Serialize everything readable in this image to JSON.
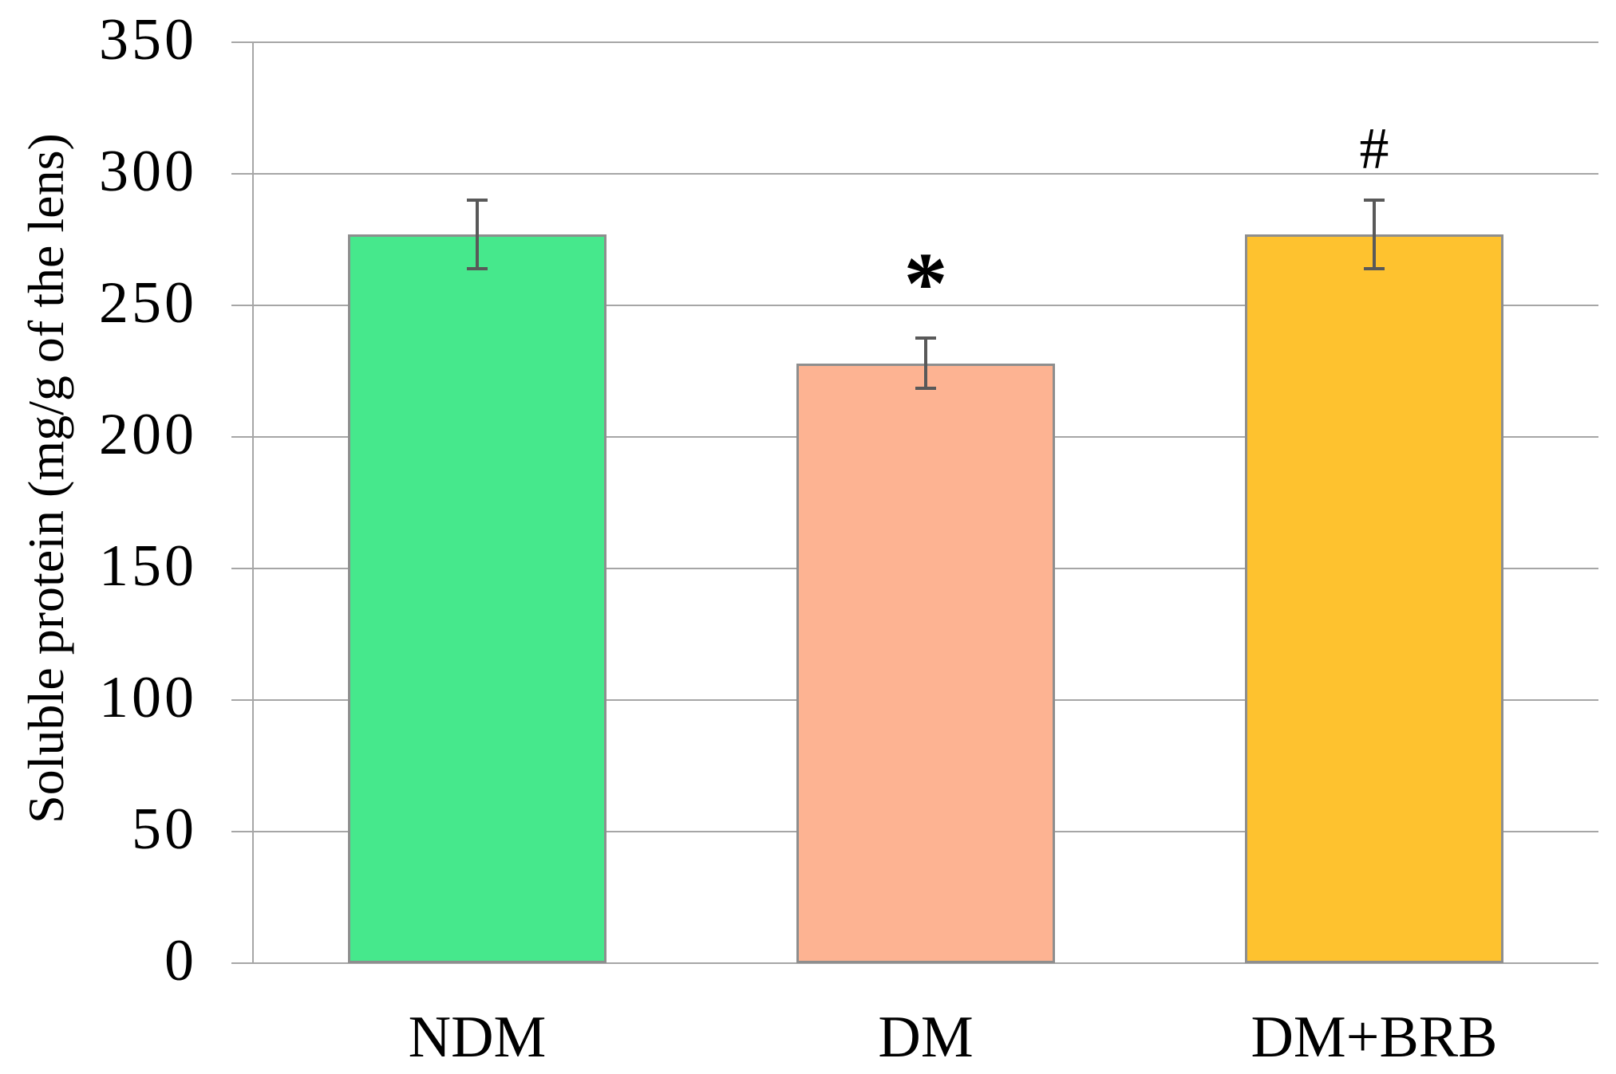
{
  "chart_data": {
    "type": "bar",
    "ylabel": "Soluble protein (mg/g of the lens)",
    "xlabel": "",
    "categories": [
      "NDM",
      "DM",
      "DM+BRB"
    ],
    "values": [
      277,
      228,
      277
    ],
    "errors": [
      13,
      9.5,
      13
    ],
    "annotations": [
      "",
      "*",
      "#"
    ],
    "bar_colors": [
      "#46E88C",
      "#FDB392",
      "#FEC22F"
    ],
    "bar_border_color": "#8E8E8E",
    "error_bar_color": "#595959",
    "gridline_color": "#A6A6A6",
    "axis_line_color": "#A6A6A6",
    "text_color": "#000000",
    "background_color": "#FFFFFF",
    "ylim": [
      0,
      350
    ],
    "yticks": [
      0,
      50,
      100,
      150,
      200,
      250,
      300,
      350
    ],
    "grid": true,
    "legend": false
  }
}
